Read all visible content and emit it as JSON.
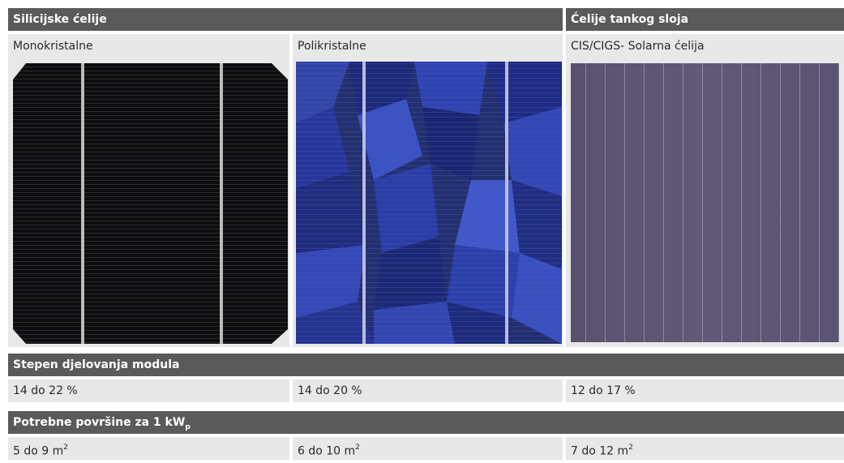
{
  "table": {
    "group_headers": {
      "silicon": "Silicijske ćelije",
      "thin_film": "Ćelije tankog sloja"
    },
    "columns": [
      {
        "name": "Monokristalne",
        "cell_color": "#0e0e10",
        "efficiency": "14 do 22 %",
        "area_value": "5 do 9 m",
        "area_unit_exp": "2"
      },
      {
        "name": "Polikristalne",
        "cell_color": "#25348a",
        "efficiency": "14 do 20 %",
        "area_value": "6 do 10 m",
        "area_unit_exp": "2"
      },
      {
        "name": "CIS/CIGS- Solarna ćelija",
        "cell_color": "#5d5470",
        "efficiency": "12 do 17 %",
        "area_value": "7 do 12 m",
        "area_unit_exp": "2"
      }
    ],
    "efficiency_header": "Stepen djelovanja modula",
    "area_header_prefix": "Potrebne površine za 1 kW",
    "area_header_sub": "p"
  }
}
